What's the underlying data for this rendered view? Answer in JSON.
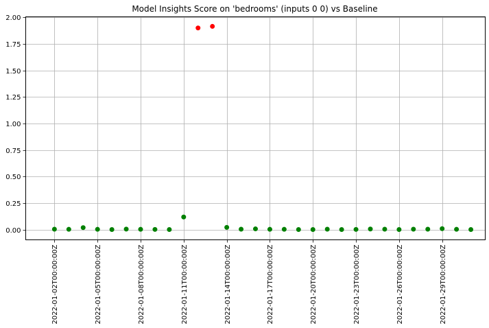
{
  "chart_data": {
    "type": "scatter",
    "title": "Model Insights Score on 'bedrooms' (inputs 0 0) vs Baseline",
    "xlabel": "",
    "ylabel": "",
    "x_range": [
      "2022-01-01",
      "2022-01-31"
    ],
    "ylim": [
      -0.095,
      2.005
    ],
    "grid": true,
    "y_ticks": [
      0.0,
      0.25,
      0.5,
      0.75,
      1.0,
      1.25,
      1.5,
      1.75,
      2.0
    ],
    "y_tick_labels": [
      "0.00",
      "0.25",
      "0.50",
      "0.75",
      "1.00",
      "1.25",
      "1.50",
      "1.75",
      "2.00"
    ],
    "x_ticks": [
      "2022-01-02",
      "2022-01-05",
      "2022-01-08",
      "2022-01-11",
      "2022-01-14",
      "2022-01-17",
      "2022-01-20",
      "2022-01-23",
      "2022-01-26",
      "2022-01-29"
    ],
    "x_tick_labels": [
      "2022-01-02T00:00:00Z",
      "2022-01-05T00:00:00Z",
      "2022-01-08T00:00:00Z",
      "2022-01-11T00:00:00Z",
      "2022-01-14T00:00:00Z",
      "2022-01-17T00:00:00Z",
      "2022-01-20T00:00:00Z",
      "2022-01-23T00:00:00Z",
      "2022-01-26T00:00:00Z",
      "2022-01-29T00:00:00Z"
    ],
    "colors": {
      "normal": "#008000",
      "anomaly": "#ff0000",
      "grid": "#b0b0b0",
      "axis": "#000000"
    },
    "points": [
      {
        "x": "2022-01-02",
        "y": 0.005,
        "status": "normal"
      },
      {
        "x": "2022-01-03",
        "y": 0.004,
        "status": "normal"
      },
      {
        "x": "2022-01-04",
        "y": 0.02,
        "status": "normal"
      },
      {
        "x": "2022-01-05",
        "y": 0.004,
        "status": "normal"
      },
      {
        "x": "2022-01-06",
        "y": 0.002,
        "status": "normal"
      },
      {
        "x": "2022-01-07",
        "y": 0.006,
        "status": "normal"
      },
      {
        "x": "2022-01-08",
        "y": 0.004,
        "status": "normal"
      },
      {
        "x": "2022-01-09",
        "y": 0.003,
        "status": "normal"
      },
      {
        "x": "2022-01-10",
        "y": 0.002,
        "status": "normal"
      },
      {
        "x": "2022-01-11",
        "y": 0.12,
        "status": "normal"
      },
      {
        "x": "2022-01-12",
        "y": 1.9,
        "status": "anomaly"
      },
      {
        "x": "2022-01-13",
        "y": 1.915,
        "status": "anomaly"
      },
      {
        "x": "2022-01-14",
        "y": 0.022,
        "status": "normal"
      },
      {
        "x": "2022-01-15",
        "y": 0.005,
        "status": "normal"
      },
      {
        "x": "2022-01-16",
        "y": 0.008,
        "status": "normal"
      },
      {
        "x": "2022-01-17",
        "y": 0.004,
        "status": "normal"
      },
      {
        "x": "2022-01-18",
        "y": 0.004,
        "status": "normal"
      },
      {
        "x": "2022-01-19",
        "y": 0.002,
        "status": "normal"
      },
      {
        "x": "2022-01-20",
        "y": 0.002,
        "status": "normal"
      },
      {
        "x": "2022-01-21",
        "y": 0.005,
        "status": "normal"
      },
      {
        "x": "2022-01-22",
        "y": 0.002,
        "status": "normal"
      },
      {
        "x": "2022-01-23",
        "y": 0.003,
        "status": "normal"
      },
      {
        "x": "2022-01-24",
        "y": 0.007,
        "status": "normal"
      },
      {
        "x": "2022-01-25",
        "y": 0.005,
        "status": "normal"
      },
      {
        "x": "2022-01-26",
        "y": 0.002,
        "status": "normal"
      },
      {
        "x": "2022-01-27",
        "y": 0.005,
        "status": "normal"
      },
      {
        "x": "2022-01-28",
        "y": 0.005,
        "status": "normal"
      },
      {
        "x": "2022-01-29",
        "y": 0.01,
        "status": "normal"
      },
      {
        "x": "2022-01-30",
        "y": 0.004,
        "status": "normal"
      },
      {
        "x": "2022-01-31",
        "y": 0.002,
        "status": "normal"
      }
    ]
  }
}
